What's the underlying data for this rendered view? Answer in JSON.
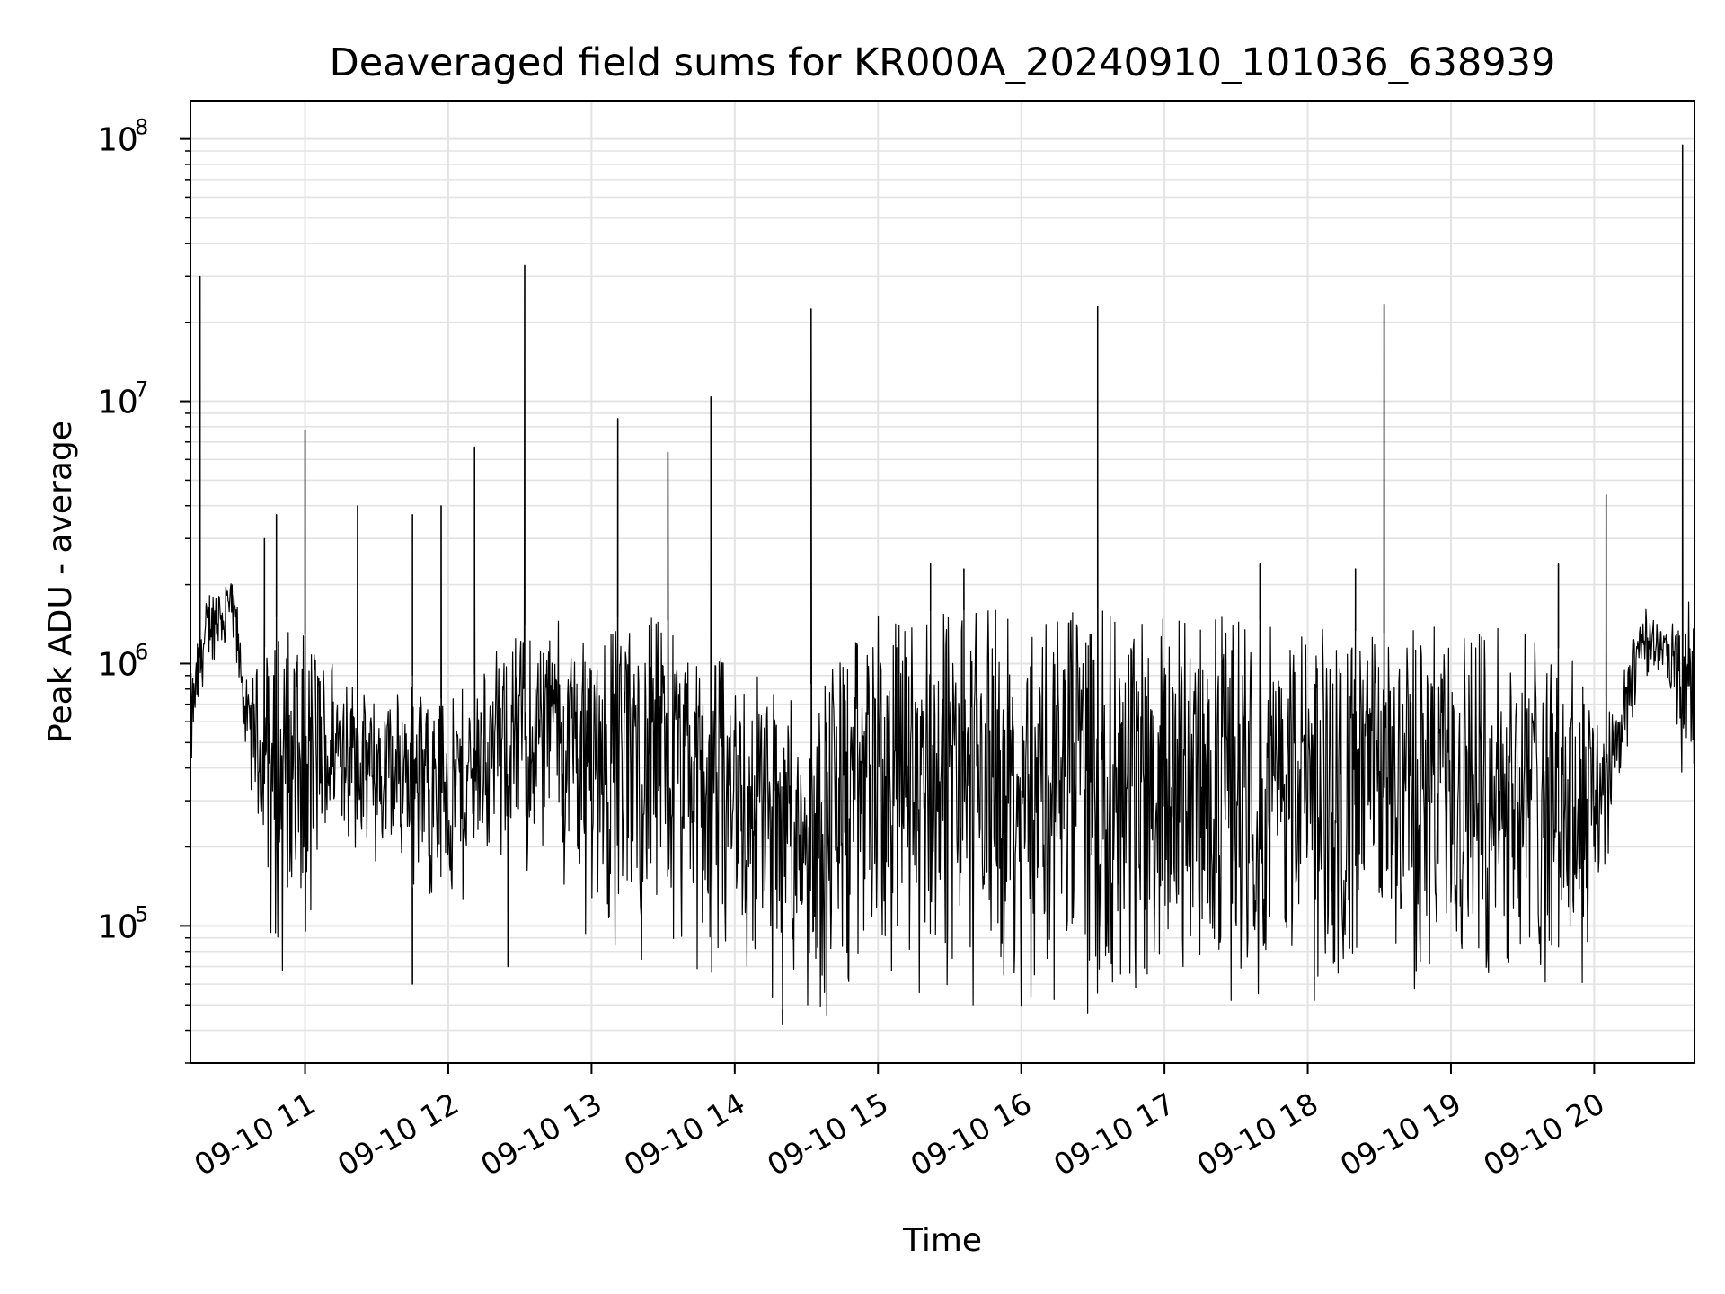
{
  "chart_data": {
    "type": "line",
    "title": "Deaveraged field sums for KR000A_20240910_101036_638939",
    "xlabel": "Time",
    "ylabel": "Peak ADU - average",
    "y_scale": "log",
    "ylim": [
      30000,
      140000000
    ],
    "xlim": [
      "2024-09-10 10:12",
      "2024-09-10 20:42"
    ],
    "grid": true,
    "line_color": "#000000",
    "x_ticks": [
      {
        "label": "09-10 11",
        "time": "2024-09-10 11:00"
      },
      {
        "label": "09-10 12",
        "time": "2024-09-10 12:00"
      },
      {
        "label": "09-10 13",
        "time": "2024-09-10 13:00"
      },
      {
        "label": "09-10 14",
        "time": "2024-09-10 14:00"
      },
      {
        "label": "09-10 15",
        "time": "2024-09-10 15:00"
      },
      {
        "label": "09-10 16",
        "time": "2024-09-10 16:00"
      },
      {
        "label": "09-10 17",
        "time": "2024-09-10 17:00"
      },
      {
        "label": "09-10 18",
        "time": "2024-09-10 18:00"
      },
      {
        "label": "09-10 19",
        "time": "2024-09-10 19:00"
      },
      {
        "label": "09-10 20",
        "time": "2024-09-10 20:00"
      }
    ],
    "y_ticks": [
      {
        "base": "10",
        "exponent": "5",
        "value": 100000
      },
      {
        "base": "10",
        "exponent": "6",
        "value": 1000000
      },
      {
        "base": "10",
        "exponent": "7",
        "value": 10000000
      },
      {
        "base": "10",
        "exponent": "8",
        "value": 100000000
      }
    ],
    "series": [
      {
        "envelope": [
          {
            "time": "2024-09-10 10:12",
            "low": 350000,
            "high": 900000
          },
          {
            "time": "2024-09-10 10:20",
            "low": 1000000,
            "high": 2000000
          },
          {
            "time": "2024-09-10 10:30",
            "low": 1000000,
            "high": 2200000
          },
          {
            "time": "2024-09-10 10:36",
            "low": 400000,
            "high": 800000
          },
          {
            "time": "2024-09-10 10:48",
            "low": 60000,
            "high": 1500000
          },
          {
            "time": "2024-09-10 11:00",
            "low": 65000,
            "high": 1300000
          },
          {
            "time": "2024-09-10 11:15",
            "low": 220000,
            "high": 1000000
          },
          {
            "time": "2024-09-10 11:30",
            "low": 160000,
            "high": 700000
          },
          {
            "time": "2024-09-10 11:45",
            "low": 140000,
            "high": 900000
          },
          {
            "time": "2024-09-10 12:00",
            "low": 110000,
            "high": 700000
          },
          {
            "time": "2024-09-10 12:15",
            "low": 140000,
            "high": 1000000
          },
          {
            "time": "2024-09-10 12:30",
            "low": 150000,
            "high": 1400000
          },
          {
            "time": "2024-09-10 12:45",
            "low": 130000,
            "high": 1500000
          },
          {
            "time": "2024-09-10 13:00",
            "low": 80000,
            "high": 1500000
          },
          {
            "time": "2024-09-10 13:30",
            "low": 70000,
            "high": 1500000
          },
          {
            "time": "2024-09-10 14:00",
            "low": 55000,
            "high": 1000000
          },
          {
            "time": "2024-09-10 14:30",
            "low": 45000,
            "high": 800000
          },
          {
            "time": "2024-09-10 15:00",
            "low": 45000,
            "high": 1550000
          },
          {
            "time": "2024-09-10 15:30",
            "low": 48000,
            "high": 1600000
          },
          {
            "time": "2024-09-10 16:00",
            "low": 47000,
            "high": 1600000
          },
          {
            "time": "2024-09-10 16:30",
            "low": 46000,
            "high": 1600000
          },
          {
            "time": "2024-09-10 17:00",
            "low": 50000,
            "high": 1550000
          },
          {
            "time": "2024-09-10 17:30",
            "low": 52000,
            "high": 1500000
          },
          {
            "time": "2024-09-10 18:00",
            "low": 48000,
            "high": 1400000
          },
          {
            "time": "2024-09-10 18:30",
            "low": 50000,
            "high": 1300000
          },
          {
            "time": "2024-09-10 19:00",
            "low": 55000,
            "high": 1500000
          },
          {
            "time": "2024-09-10 19:30",
            "low": 55000,
            "high": 1400000
          },
          {
            "time": "2024-09-10 19:55",
            "low": 60000,
            "high": 1000000
          },
          {
            "time": "2024-09-10 20:02",
            "low": 120000,
            "high": 700000
          },
          {
            "time": "2024-09-10 20:12",
            "low": 350000,
            "high": 900000
          },
          {
            "time": "2024-09-10 20:20",
            "low": 900000,
            "high": 1800000
          },
          {
            "time": "2024-09-10 20:30",
            "low": 900000,
            "high": 1300000
          },
          {
            "time": "2024-09-10 20:36",
            "low": 350000,
            "high": 1600000
          },
          {
            "time": "2024-09-10 20:42",
            "low": 400000,
            "high": 1800000
          }
        ],
        "spikes": [
          {
            "time": "2024-09-10 10:16",
            "value": 30000000
          },
          {
            "time": "2024-09-10 10:43",
            "value": 3000000
          },
          {
            "time": "2024-09-10 10:48",
            "value": 3700000
          },
          {
            "time": "2024-09-10 11:00",
            "value": 7800000
          },
          {
            "time": "2024-09-10 11:22",
            "value": 4000000
          },
          {
            "time": "2024-09-10 11:45",
            "value": 3700000
          },
          {
            "time": "2024-09-10 11:57",
            "value": 4000000
          },
          {
            "time": "2024-09-10 12:11",
            "value": 6700000
          },
          {
            "time": "2024-09-10 12:32",
            "value": 33000000
          },
          {
            "time": "2024-09-10 13:11",
            "value": 8600000
          },
          {
            "time": "2024-09-10 13:32",
            "value": 6400000
          },
          {
            "time": "2024-09-10 13:50",
            "value": 10400000
          },
          {
            "time": "2024-09-10 14:32",
            "value": 22500000
          },
          {
            "time": "2024-09-10 15:22",
            "value": 2400000
          },
          {
            "time": "2024-09-10 15:36",
            "value": 2300000
          },
          {
            "time": "2024-09-10 16:32",
            "value": 23000000
          },
          {
            "time": "2024-09-10 17:40",
            "value": 2400000
          },
          {
            "time": "2024-09-10 18:20",
            "value": 2300000
          },
          {
            "time": "2024-09-10 18:32",
            "value": 23500000
          },
          {
            "time": "2024-09-10 19:45",
            "value": 2400000
          },
          {
            "time": "2024-09-10 20:05",
            "value": 4400000
          },
          {
            "time": "2024-09-10 20:37",
            "value": 95000000
          }
        ],
        "dips": [
          {
            "time": "2024-09-10 11:45",
            "value": 60000
          },
          {
            "time": "2024-09-10 12:25",
            "value": 70000
          },
          {
            "time": "2024-09-10 14:20",
            "value": 42000
          }
        ]
      }
    ]
  }
}
